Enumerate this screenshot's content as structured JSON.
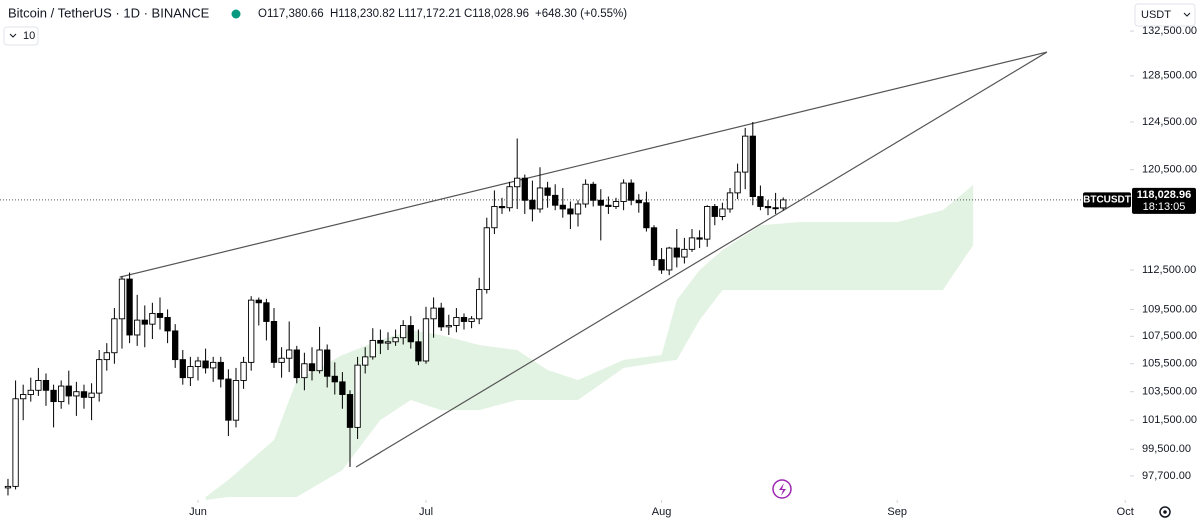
{
  "chart_data": {
    "type": "candlestick",
    "title": "Bitcoin / TetherUS · 1D · BINANCE",
    "header_values": [
      {
        "value": 117380.66,
        "label": "O117,380.66"
      },
      {
        "value": 118230.82,
        "label": "H118,230.82"
      },
      {
        "value": 117172.21,
        "label": "L117,172.21"
      },
      {
        "value": 118028.96,
        "label": "C118,028.96"
      }
    ],
    "change_label": "+648.30 (+0.55%)",
    "indicator_count": 10,
    "currency": "USDT",
    "symbol_label": "BTCUSDT",
    "last_price": {
      "value": 118028.96,
      "label": "118,028.96"
    },
    "countdown": "18:13:05",
    "log_scale": true,
    "grid": false,
    "up_color": "#ffffff",
    "down_color": "#000000",
    "edge_color": "#000000",
    "xlim": [
      -1.05,
      147.63
    ],
    "ylim": [
      96100,
      135350
    ],
    "xticks": [
      {
        "value": 25,
        "label": "Jun"
      },
      {
        "value": 55,
        "label": "Jul"
      },
      {
        "value": 86,
        "label": "Aug"
      },
      {
        "value": 117,
        "label": "Sep"
      },
      {
        "value": 147,
        "label": "Oct"
      }
    ],
    "yticks": [
      {
        "value": 132500,
        "label": "132,500.00"
      },
      {
        "value": 128500,
        "label": "128,500.00"
      },
      {
        "value": 124500,
        "label": "124,500.00"
      },
      {
        "value": 120500,
        "label": "120,500.00"
      },
      {
        "value": 112500,
        "label": "112,500.00"
      },
      {
        "value": 109500,
        "label": "109,500.00"
      },
      {
        "value": 107500,
        "label": "107,500.00"
      },
      {
        "value": 105500,
        "label": "105,500.00"
      },
      {
        "value": 103500,
        "label": "103,500.00"
      },
      {
        "value": 101500,
        "label": "101,500.00"
      },
      {
        "value": 99500,
        "label": "99,500.00"
      },
      {
        "value": 97700,
        "label": "97,700.00"
      }
    ],
    "x": [
      0,
      1,
      2,
      3,
      4,
      5,
      6,
      7,
      8,
      9,
      10,
      11,
      12,
      13,
      14,
      15,
      16,
      17,
      18,
      19,
      20,
      21,
      22,
      23,
      24,
      25,
      26,
      27,
      28,
      29,
      30,
      31,
      32,
      33,
      34,
      35,
      36,
      37,
      38,
      39,
      40,
      41,
      42,
      43,
      44,
      45,
      46,
      47,
      48,
      49,
      50,
      51,
      52,
      53,
      54,
      55,
      56,
      57,
      58,
      59,
      60,
      61,
      62,
      63,
      64,
      65,
      66,
      67,
      68,
      69,
      70,
      71,
      72,
      73,
      74,
      75,
      76,
      77,
      78,
      79,
      80,
      81,
      82,
      83,
      84,
      85,
      86,
      87,
      88,
      89,
      90,
      91,
      92,
      93,
      94,
      95,
      96,
      97,
      98,
      99,
      100,
      101,
      102
    ],
    "open": [
      96900,
      97000,
      103000,
      103300,
      103600,
      104300,
      103600,
      102800,
      103900,
      103200,
      103500,
      103100,
      103400,
      105800,
      106300,
      108800,
      111800,
      107600,
      108700,
      108400,
      109200,
      108900,
      107900,
      105800,
      104500,
      105300,
      105700,
      105200,
      105600,
      104400,
      101500,
      104300,
      105600,
      110200,
      110000,
      108600,
      105600,
      105900,
      106500,
      104500,
      105500,
      105000,
      106500,
      104600,
      104200,
      103300,
      101000,
      105400,
      106000,
      107200,
      107000,
      107100,
      107400,
      108300,
      107100,
      105700,
      108800,
      109600,
      108200,
      108300,
      108900,
      108600,
      108800,
      111000,
      115800,
      117500,
      117400,
      119100,
      119800,
      118000,
      117300,
      119000,
      118400,
      117600,
      117300,
      116900,
      117700,
      119300,
      118000,
      117600,
      117500,
      117900,
      119400,
      118000,
      117800,
      115800,
      113300,
      112500,
      114200,
      113500,
      114100,
      115000,
      114900,
      117500,
      116700,
      117300,
      118600,
      120300,
      123300,
      118300,
      117500,
      117400,
      117380.66
    ],
    "high": [
      97500,
      104300,
      104000,
      104500,
      105200,
      104800,
      104000,
      104300,
      105000,
      104200,
      104000,
      104100,
      106500,
      107000,
      109600,
      112000,
      112300,
      110600,
      109800,
      110000,
      110400,
      109500,
      108400,
      106500,
      106000,
      106000,
      106600,
      106000,
      106000,
      105100,
      105200,
      106000,
      110500,
      110400,
      110300,
      109600,
      106700,
      108600,
      106800,
      106300,
      106700,
      108200,
      106900,
      105600,
      104900,
      103600,
      106000,
      106700,
      108100,
      108000,
      107800,
      108000,
      108700,
      109000,
      108000,
      109700,
      110400,
      110000,
      109100,
      109600,
      109200,
      109000,
      111900,
      116600,
      118800,
      118200,
      119500,
      123100,
      120100,
      119600,
      120700,
      119500,
      119300,
      119000,
      117900,
      118000,
      119700,
      119500,
      118900,
      118300,
      118200,
      119700,
      119700,
      118500,
      118700,
      116000,
      114200,
      114300,
      115700,
      115000,
      115700,
      115600,
      117600,
      117700,
      117800,
      119000,
      121000,
      124000,
      124500,
      119200,
      118000,
      118600,
      118230.82
    ],
    "low": [
      96400,
      96800,
      101500,
      102800,
      103200,
      102500,
      101000,
      102300,
      102600,
      101800,
      102300,
      101500,
      102800,
      105000,
      105500,
      106600,
      107000,
      106800,
      106700,
      107300,
      108000,
      107000,
      105200,
      104000,
      103900,
      104300,
      104800,
      104200,
      103800,
      100400,
      101000,
      103700,
      105000,
      108300,
      107200,
      105200,
      104500,
      104900,
      104100,
      103600,
      104300,
      104800,
      103800,
      103300,
      102300,
      98300,
      100200,
      104800,
      105800,
      106200,
      106500,
      106800,
      106900,
      106600,
      105400,
      105500,
      107400,
      107900,
      107600,
      107800,
      108000,
      108100,
      108400,
      110700,
      115300,
      116900,
      117100,
      117300,
      116900,
      116300,
      117000,
      117400,
      117200,
      116600,
      115700,
      115900,
      117400,
      117500,
      114800,
      116900,
      117300,
      117200,
      117600,
      117000,
      115500,
      112800,
      112200,
      112100,
      112700,
      113000,
      113900,
      114200,
      114300,
      116000,
      116400,
      117000,
      118100,
      118900,
      117600,
      117200,
      116800,
      116900,
      117172.21
    ],
    "close": [
      97000,
      103000,
      103300,
      103600,
      104300,
      103600,
      102800,
      103900,
      103200,
      103500,
      103100,
      103400,
      105800,
      106300,
      108800,
      111800,
      107600,
      108700,
      108400,
      109200,
      108900,
      107900,
      105800,
      104500,
      105300,
      105700,
      105200,
      105600,
      104400,
      101500,
      104300,
      105600,
      110200,
      110000,
      108600,
      105600,
      105900,
      106500,
      104500,
      105500,
      105000,
      106500,
      104600,
      104200,
      103300,
      101000,
      105400,
      106000,
      107200,
      107000,
      107100,
      107400,
      108300,
      107100,
      105700,
      108800,
      109600,
      108200,
      108300,
      108900,
      108600,
      108800,
      111000,
      115800,
      117500,
      117400,
      119100,
      119800,
      118000,
      117300,
      119000,
      118400,
      117600,
      117300,
      116900,
      117700,
      119300,
      118000,
      117600,
      117500,
      117900,
      119400,
      118000,
      117800,
      115800,
      113300,
      112500,
      114200,
      113500,
      114100,
      115000,
      114900,
      117500,
      116700,
      117300,
      118600,
      120300,
      123300,
      118300,
      117500,
      117400,
      117380.66,
      118028.96
    ],
    "cloud": {
      "color": "#e3f3e3",
      "x": [
        26,
        29,
        35,
        38,
        44,
        49,
        53,
        57,
        62,
        67,
        71,
        75,
        81,
        86,
        88,
        91,
        94,
        99,
        104,
        112,
        117,
        123,
        127
      ],
      "upper": [
        96300,
        97430,
        100130,
        104330,
        106130,
        107230,
        107960,
        107590,
        106860,
        106490,
        105050,
        104330,
        105780,
        106130,
        110210,
        112490,
        114040,
        116000,
        116250,
        116250,
        116250,
        117210,
        119240
      ],
      "lower": [
        96100,
        96300,
        96300,
        96300,
        98090,
        101510,
        102910,
        102200,
        102200,
        102910,
        102910,
        102910,
        105190,
        105630,
        105780,
        108700,
        110960,
        110960,
        110960,
        110960,
        110960,
        110960,
        114430
      ]
    },
    "trendline_color": "#555555",
    "trendlines": [
      {
        "x": [
          14.7,
          136.7
        ],
        "y": [
          111950,
          130608
        ]
      },
      {
        "x": [
          45.8,
          136.7
        ],
        "y": [
          98300,
          130608
        ]
      }
    ]
  }
}
